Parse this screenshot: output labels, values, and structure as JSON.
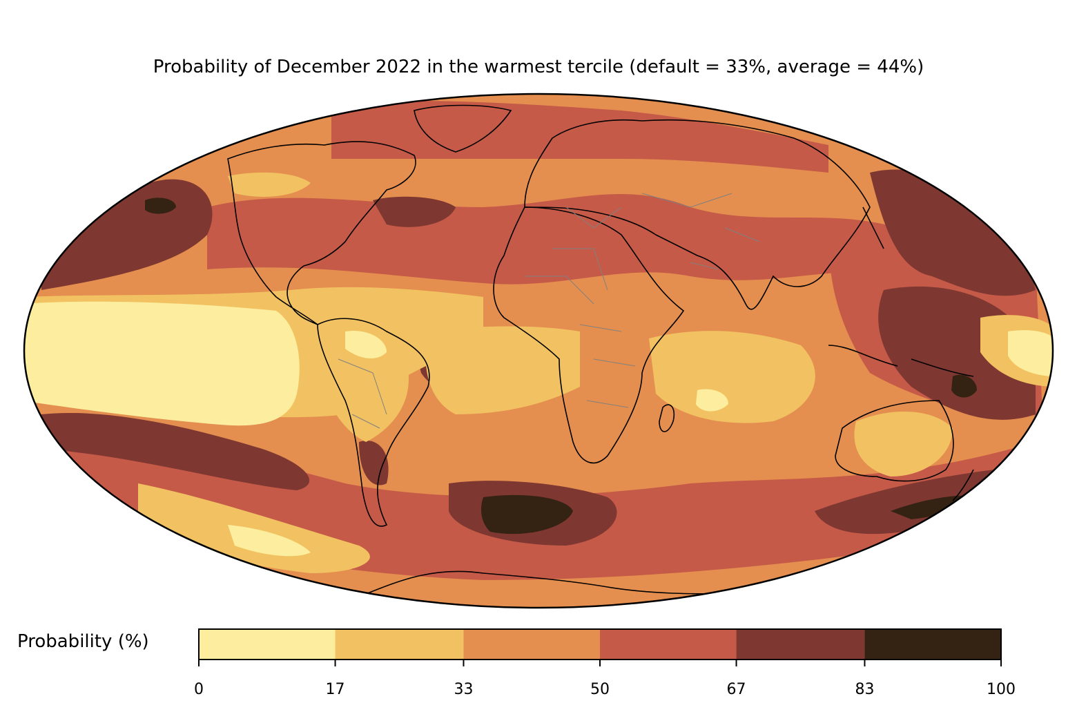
{
  "title": "Probability of December 2022 in the warmest tercile (default = 33%, average = 44%)",
  "colorbar": {
    "label": "Probability (%)",
    "bounds": [
      0,
      17,
      33,
      50,
      67,
      83,
      100
    ],
    "tick_labels": [
      "0",
      "17",
      "33",
      "50",
      "67",
      "83",
      "100"
    ],
    "colors": [
      "#fcee9e",
      "#f2c262",
      "#e48f4f",
      "#c65a48",
      "#7e3731",
      "#342213"
    ]
  },
  "projection": "Mollweide",
  "field": "probability_warmest_tercile",
  "default_probability_pct": 33,
  "average_probability_pct": 44
}
